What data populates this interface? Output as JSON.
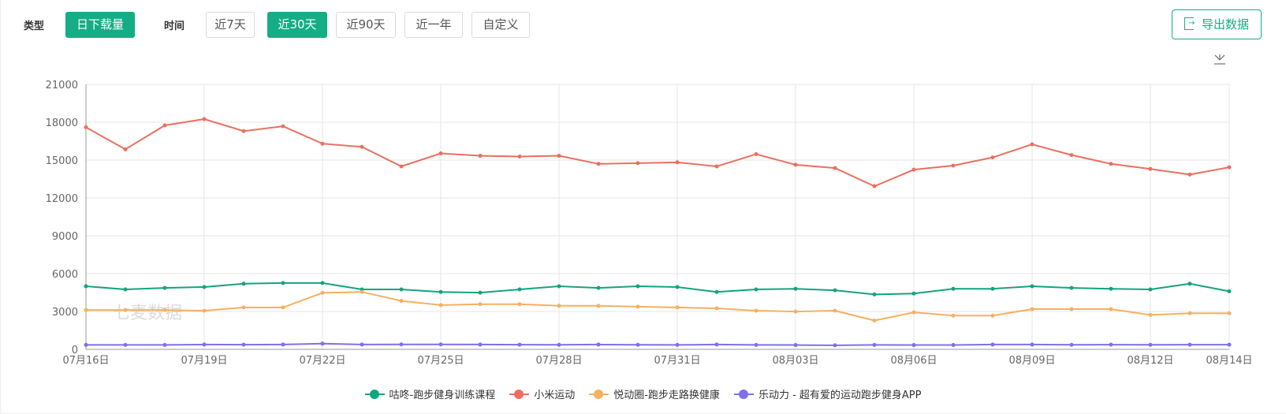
{
  "toolbar": {
    "type_label": "类型",
    "type_options": [
      "日下载量"
    ],
    "time_label": "时间",
    "time_options": [
      "近7天",
      "近30天",
      "近90天",
      "近一年",
      "自定义"
    ],
    "time_selected": "近30天",
    "export_label": "导出数据"
  },
  "watermark": "七麦数据",
  "colors": {
    "accent": "#14ad86"
  },
  "chart_data": {
    "type": "line",
    "grid": true,
    "legend_position": "bottom",
    "ylim": [
      0,
      21000
    ],
    "yticks": [
      "0",
      "3000",
      "6000",
      "9000",
      "12000",
      "15000",
      "18000",
      "21000"
    ],
    "x": [
      "07月16日",
      "07月17日",
      "07月18日",
      "07月19日",
      "07月20日",
      "07月21日",
      "07月22日",
      "07月23日",
      "07月24日",
      "07月25日",
      "07月26日",
      "07月27日",
      "07月28日",
      "07月29日",
      "07月30日",
      "07月31日",
      "08月01日",
      "08月02日",
      "08月03日",
      "08月04日",
      "08月05日",
      "08月06日",
      "08月07日",
      "08月08日",
      "08月09日",
      "08月10日",
      "08月11日",
      "08月12日",
      "08月13日",
      "08月14日"
    ],
    "xtick_labels": [
      "07月16日",
      "07月19日",
      "07月22日",
      "07月25日",
      "07月28日",
      "07月31日",
      "08月03日",
      "08月06日",
      "08月09日",
      "08月12日",
      "08月14日"
    ],
    "series": [
      {
        "name": "咕咚-跑步健身训练课程",
        "color": "#14a37f",
        "values": [
          5000,
          4750,
          4870,
          4940,
          5200,
          5260,
          5260,
          4750,
          4750,
          4550,
          4490,
          4750,
          5000,
          4870,
          5000,
          4940,
          4550,
          4750,
          4800,
          4680,
          4350,
          4420,
          4800,
          4800,
          5000,
          4870,
          4800,
          4750,
          5200,
          4600
        ]
      },
      {
        "name": "小米运动",
        "color": "#e9705f",
        "values": [
          17600,
          15850,
          17750,
          18250,
          17300,
          17680,
          16300,
          16050,
          14500,
          15530,
          15340,
          15280,
          15340,
          14700,
          14760,
          14820,
          14500,
          15470,
          14630,
          14370,
          12930,
          14240,
          14560,
          15210,
          16250,
          15400,
          14700,
          14300,
          13850,
          14430
        ]
      },
      {
        "name": "悦动圈-跑步走路换健康",
        "color": "#f5b061",
        "values": [
          3120,
          3120,
          3120,
          3060,
          3320,
          3320,
          4480,
          4550,
          3840,
          3510,
          3580,
          3580,
          3450,
          3450,
          3380,
          3320,
          3250,
          3060,
          2990,
          3060,
          2280,
          2930,
          2670,
          2670,
          3190,
          3190,
          3190,
          2730,
          2860,
          2860
        ]
      },
      {
        "name": "乐动力 - 超有爱的运动跑步健身APP",
        "color": "#7d70ea",
        "values": [
          350,
          350,
          350,
          380,
          370,
          380,
          450,
          380,
          390,
          390,
          380,
          370,
          360,
          380,
          360,
          350,
          380,
          350,
          340,
          320,
          350,
          340,
          340,
          380,
          380,
          360,
          370,
          360,
          370,
          370
        ]
      }
    ]
  }
}
